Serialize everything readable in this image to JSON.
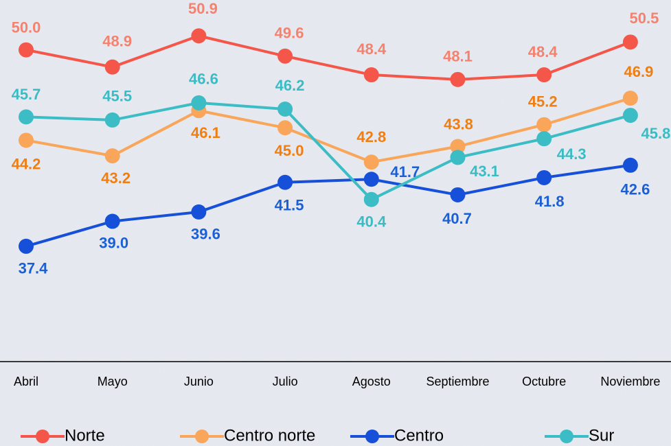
{
  "chart_data": {
    "type": "line",
    "categories": [
      "Abril",
      "Mayo",
      "Junio",
      "Julio",
      "Agosto",
      "Septiembre",
      "Octubre",
      "Noviembre"
    ],
    "ylim": [
      30,
      53.2
    ],
    "series": [
      {
        "name": "Norte",
        "color": "#f4574a",
        "label_color": "#f4826f",
        "values": [
          50.0,
          48.9,
          50.9,
          49.6,
          48.4,
          48.1,
          48.4,
          50.5
        ],
        "value_labels": [
          "50.0",
          "48.9",
          "50.9",
          "49.6",
          "48.4",
          "48.1",
          "48.4",
          "50.5"
        ]
      },
      {
        "name": "Centro norte",
        "color": "#f9a55a",
        "label_color": "#f07e10",
        "values": [
          44.2,
          43.2,
          46.1,
          45.0,
          42.8,
          43.8,
          45.2,
          46.9
        ],
        "value_labels": [
          "44.2",
          "43.2",
          "46.1",
          "45.0",
          "42.8",
          "43.8",
          "45.2",
          "46.9"
        ]
      },
      {
        "name": "Centro",
        "color": "#1650d8",
        "label_color": "#1a5fd6",
        "values": [
          37.4,
          39.0,
          39.6,
          41.5,
          41.7,
          40.7,
          41.8,
          42.6
        ],
        "value_labels": [
          "37.4",
          "39.0",
          "39.6",
          "41.5",
          "41.7",
          "40.7",
          "41.8",
          "42.6"
        ]
      },
      {
        "name": "Sur",
        "color": "#3cbcc4",
        "label_color": "#3bbcc4",
        "values": [
          45.7,
          45.5,
          46.6,
          46.2,
          40.4,
          43.1,
          44.3,
          45.8
        ],
        "value_labels": [
          "45.7",
          "45.5",
          "46.6",
          "46.2",
          "40.4",
          "43.1",
          "44.3",
          "45.8"
        ]
      }
    ]
  }
}
